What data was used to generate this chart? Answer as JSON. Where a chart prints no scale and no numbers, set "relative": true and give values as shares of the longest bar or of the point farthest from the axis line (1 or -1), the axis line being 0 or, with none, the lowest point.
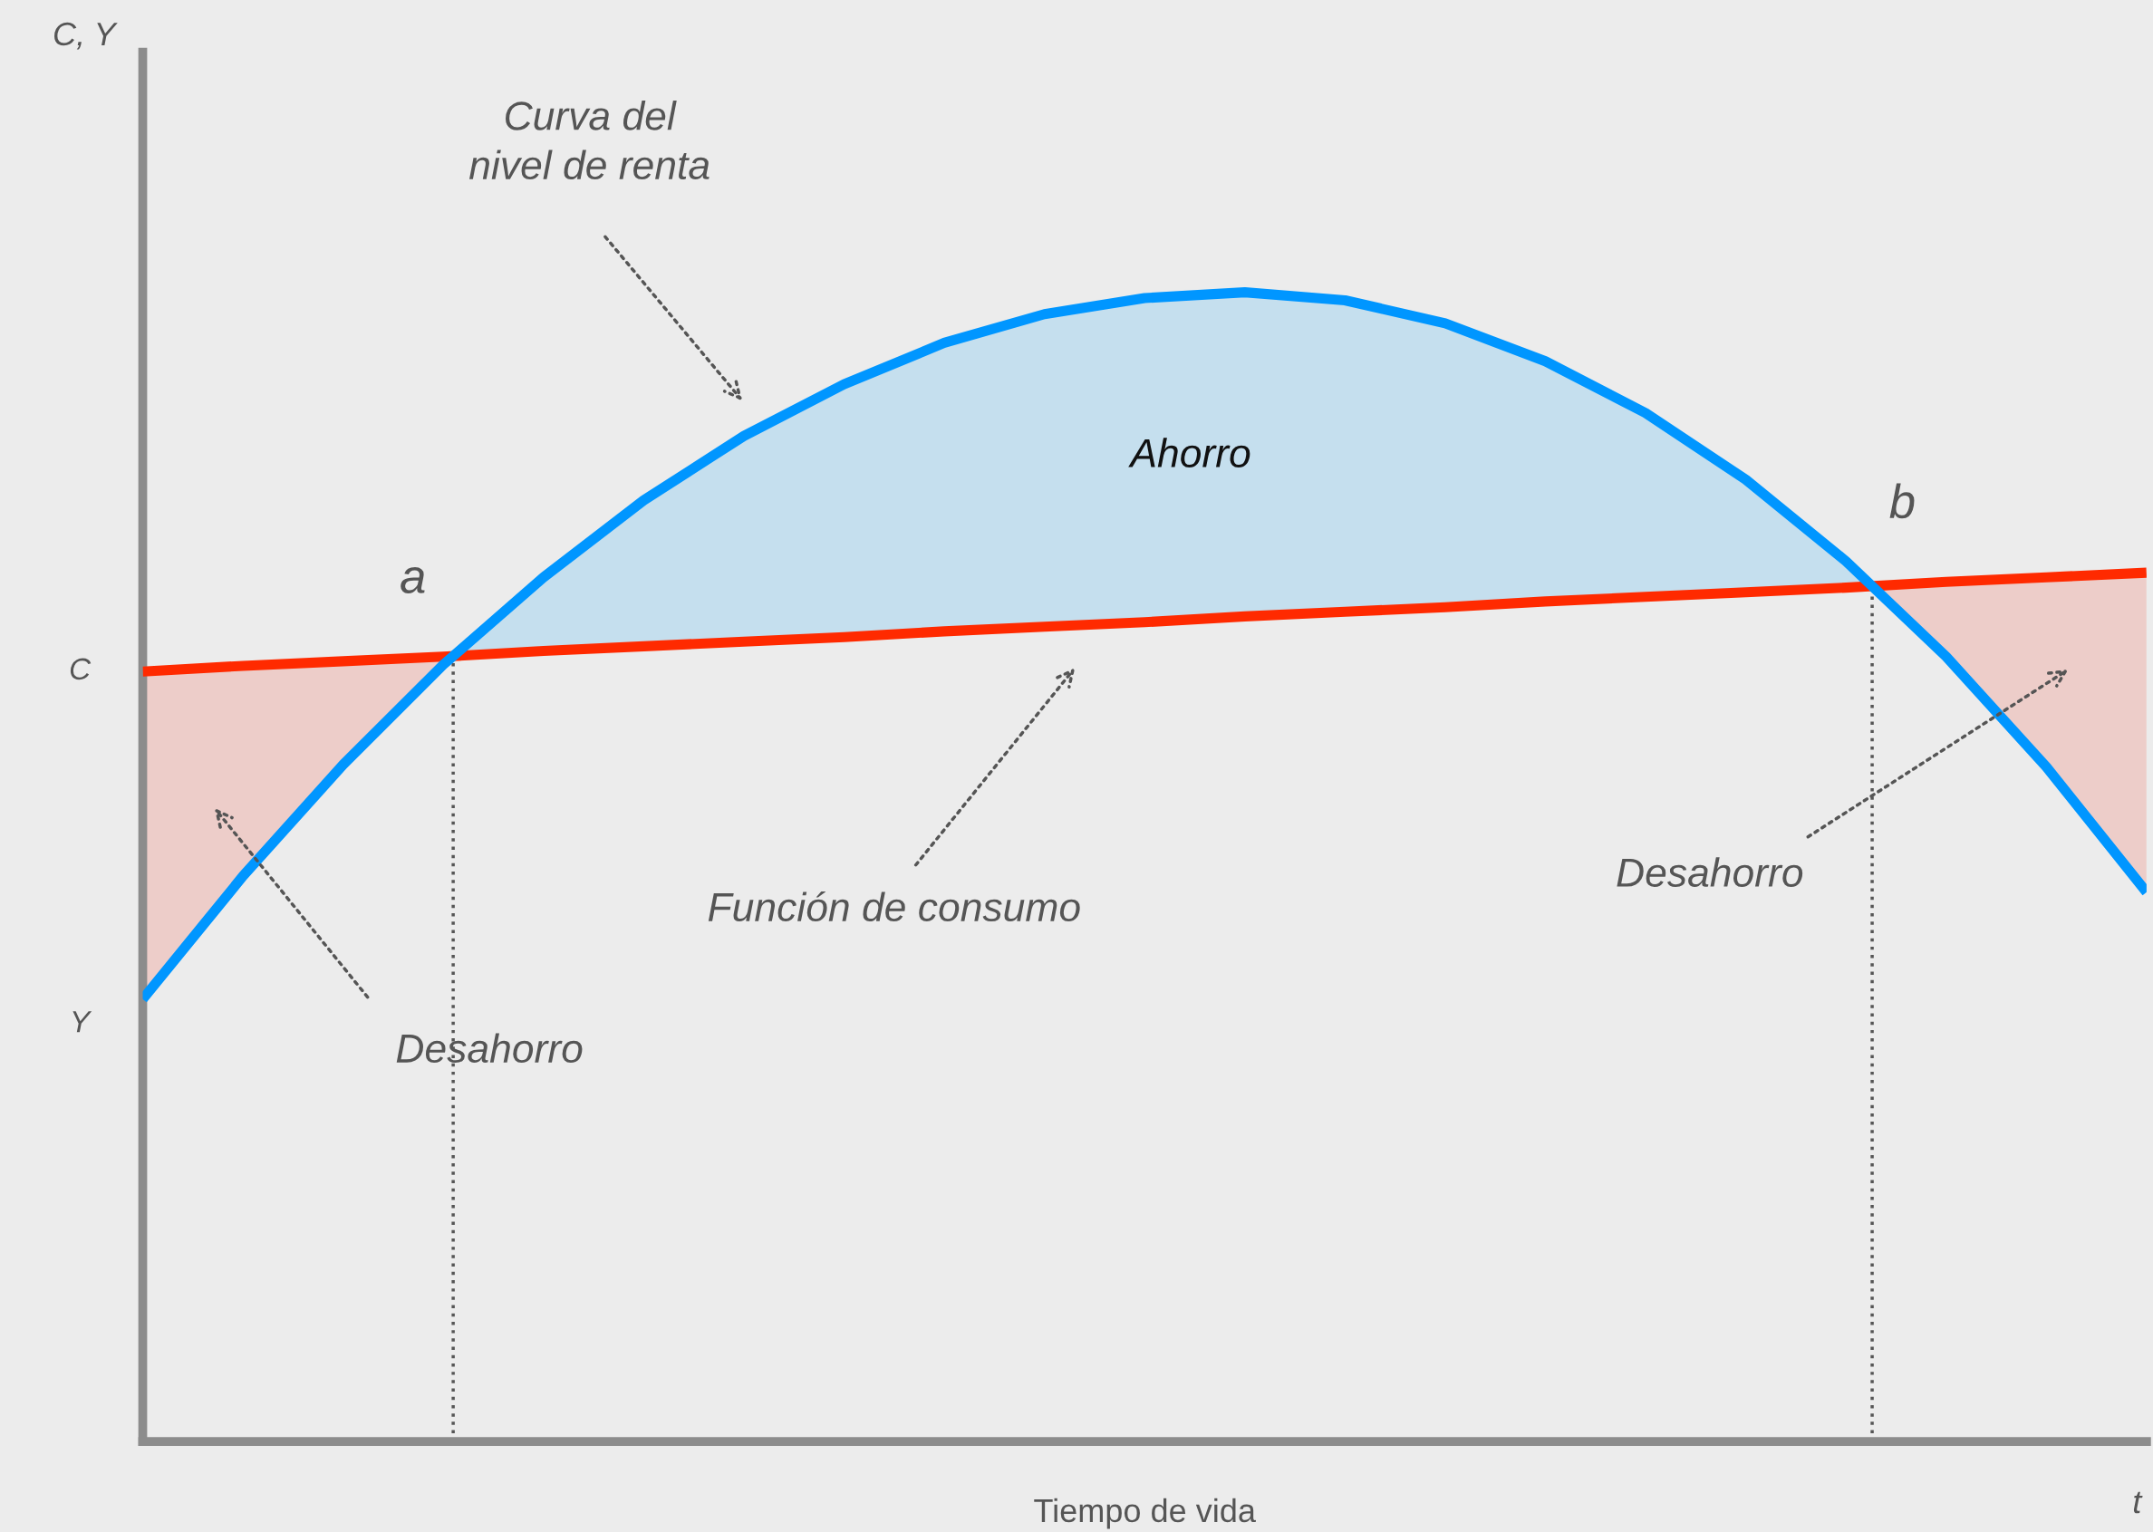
{
  "chart_data": {
    "type": "line",
    "relative": true,
    "xlabel": "Tiempo de vida",
    "legend": false,
    "marker": "none",
    "line_style": "solid",
    "categories": [
      null,
      null,
      null,
      null,
      null,
      null,
      null,
      null,
      null,
      null,
      null,
      null,
      null,
      null,
      null,
      null,
      null,
      null,
      null,
      null,
      null
    ],
    "series": [
      {
        "color": "#0096ff",
        "values": [
          0.385,
          0.492,
          0.589,
          0.676,
          0.752,
          0.819,
          0.875,
          0.92,
          0.956,
          0.981,
          0.995,
          1.0,
          0.993,
          0.973,
          0.94,
          0.895,
          0.837,
          0.766,
          0.683,
          0.587,
          0.478
        ]
      },
      {
        "color": "#ff2a00",
        "values": [
          0.67,
          0.675,
          0.679,
          0.683,
          0.688,
          0.692,
          0.696,
          0.7,
          0.705,
          0.709,
          0.713,
          0.718,
          0.722,
          0.726,
          0.731,
          0.735,
          0.739,
          0.743,
          0.748,
          0.752,
          0.756
        ]
      }
    ],
    "annotations": [
      "C, Y",
      "Curva del\nnivel de renta",
      "Función de consumo",
      "Desahorro",
      "Desahorro",
      "Ahorro",
      "a",
      "b",
      "C",
      "Y",
      "t"
    ]
  }
}
